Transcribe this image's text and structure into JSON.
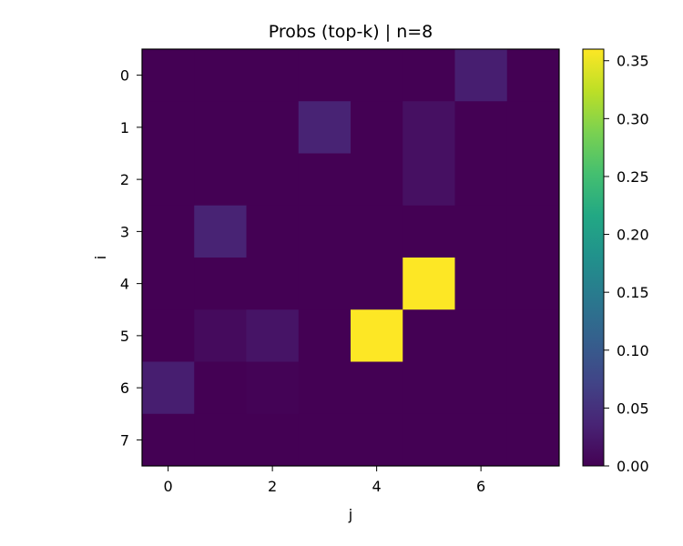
{
  "chart_data": {
    "type": "heatmap",
    "title": "Probs (top-k) | n=8",
    "xlabel": "j",
    "ylabel": "i",
    "x_categories": [
      0,
      1,
      2,
      3,
      4,
      5,
      6,
      7
    ],
    "y_categories": [
      0,
      1,
      2,
      3,
      4,
      5,
      6,
      7
    ],
    "x_tick_labels": [
      "0",
      "2",
      "4",
      "6"
    ],
    "y_tick_labels": [
      "0",
      "1",
      "2",
      "3",
      "4",
      "5",
      "6",
      "7"
    ],
    "values": [
      [
        0.0,
        0.0,
        0.0,
        0.0,
        0.0,
        0.0,
        0.03,
        0.0
      ],
      [
        0.0,
        0.0,
        0.0,
        0.035,
        0.0,
        0.015,
        0.0,
        0.0
      ],
      [
        0.0,
        0.0,
        0.0,
        0.0,
        0.0,
        0.015,
        0.0,
        0.0
      ],
      [
        0.0,
        0.035,
        0.0,
        0.0,
        0.0,
        0.0,
        0.0,
        0.0
      ],
      [
        0.0,
        0.0,
        0.0,
        0.0,
        0.0,
        0.36,
        0.0,
        0.0
      ],
      [
        0.0,
        0.01,
        0.02,
        0.0,
        0.36,
        0.0,
        0.0,
        0.0
      ],
      [
        0.03,
        0.0,
        0.002,
        0.0,
        0.0,
        0.0,
        0.0,
        0.0
      ],
      [
        0.0,
        0.0,
        0.0,
        0.0,
        0.0,
        0.0,
        0.0,
        0.0
      ]
    ],
    "colorbar": {
      "colormap": "viridis",
      "range": [
        0.0,
        0.36
      ],
      "ticks": [
        0.0,
        0.05,
        0.1,
        0.15,
        0.2,
        0.25,
        0.3,
        0.35
      ],
      "tick_labels": [
        "0.00",
        "0.05",
        "0.10",
        "0.15",
        "0.20",
        "0.25",
        "0.30",
        "0.35"
      ]
    },
    "grid": false
  }
}
